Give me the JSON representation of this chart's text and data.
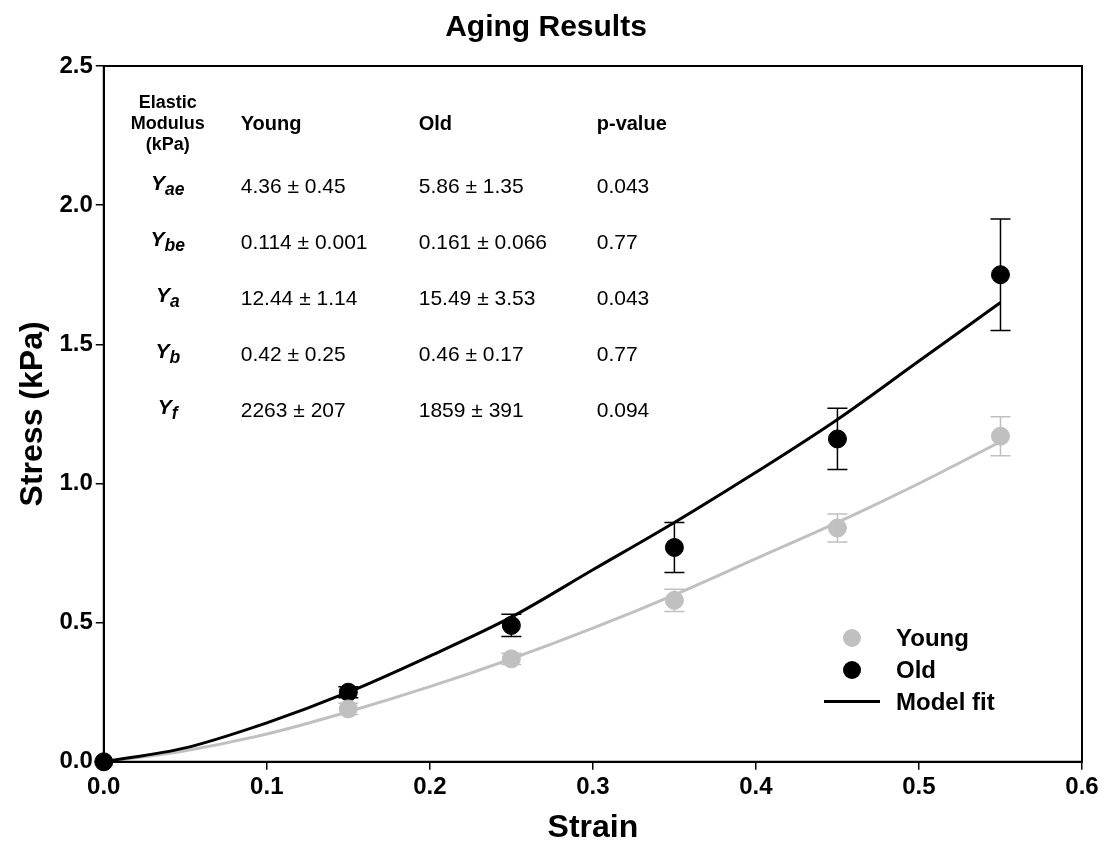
{
  "chart_data": {
    "type": "scatter",
    "title": "Aging Results",
    "xlabel": "Strain",
    "ylabel": "Stress (kPa)",
    "xlim": [
      0,
      0.6
    ],
    "xticks": [
      {
        "value": 0,
        "label": "0.0"
      },
      0.1,
      0.2,
      0.3,
      0.4,
      0.5,
      0.6
    ],
    "ylim": [
      0,
      2.5
    ],
    "yticks": [
      {
        "value": 0,
        "label": "0.0"
      },
      0.5,
      {
        "value": 1,
        "label": "1.0"
      },
      1.5,
      {
        "value": 2,
        "label": "2.0"
      },
      2.5
    ],
    "grid": false,
    "legend": "bottom right",
    "annotations": [
      "Elastic Modulus (kPa)",
      "Young",
      "Old",
      "p-value",
      "Y$_{ae}$",
      "4.36 ± 0.45",
      "5.86 ± 1.35",
      "0.043",
      "Y$_{be}$",
      "0.114 ± 0.001",
      "0.161 ± 0.066",
      "0.77",
      "Y$_{a}$",
      "12.44 ± 1.14",
      "15.49 ± 3.53",
      "0.043",
      "Y$_{b}$",
      "0.42 ± 0.25",
      "0.46 ± 0.17",
      "0.77",
      "Y$_{f}$",
      "2263 ± 207",
      "1859 ± 391",
      "0.094"
    ],
    "series": [
      {
        "name": "Young",
        "marker": "circle",
        "color": "#c0c0c0",
        "x": [
          0.15,
          0.25,
          0.35,
          0.45,
          0.55
        ],
        "values": [
          0.19,
          0.37,
          0.58,
          0.84,
          1.17
        ],
        "errors": [
          0.02,
          0.02,
          0.04,
          0.05,
          0.07
        ]
      },
      {
        "name": "Old",
        "marker": "circle",
        "color": "#000000",
        "x": [
          0,
          0.15,
          0.25,
          0.35,
          0.45,
          0.55
        ],
        "values": [
          0,
          0.25,
          0.49,
          0.77,
          1.16,
          1.75
        ],
        "errors": [
          null,
          0.02,
          0.04,
          0.09,
          0.11,
          0.2
        ]
      },
      {
        "name": "Model fit",
        "type": "line",
        "color": "#000000",
        "x": [
          0,
          0.05,
          0.1,
          0.15,
          0.2,
          0.25,
          0.3,
          0.35,
          0.4,
          0.45,
          0.5,
          0.55
        ],
        "values": [
          0,
          0.05,
          0.14,
          0.25,
          0.38,
          0.52,
          0.69,
          0.86,
          1.04,
          1.23,
          1.44,
          1.65
        ]
      },
      {
        "type": "line",
        "color": "#c0c0c0",
        "x": [
          0,
          0.05,
          0.1,
          0.15,
          0.2,
          0.25,
          0.3,
          0.35,
          0.4,
          0.45,
          0.5,
          0.55
        ],
        "values": [
          0,
          0.04,
          0.1,
          0.18,
          0.27,
          0.37,
          0.48,
          0.6,
          0.73,
          0.86,
          1.0,
          1.15
        ]
      }
    ]
  }
}
